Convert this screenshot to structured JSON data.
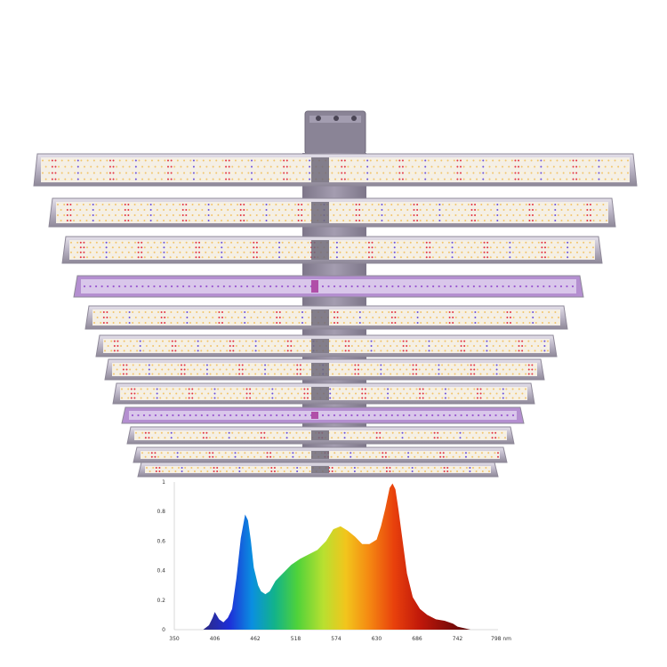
{
  "fixture": {
    "bar_count": 12,
    "bar_types": [
      "full",
      "full",
      "full",
      "uv",
      "full",
      "full",
      "full",
      "full",
      "uv",
      "full",
      "full",
      "full"
    ],
    "colors": {
      "frame": "#c7c3d2",
      "frame_edge": "#8e8898",
      "board": "#f4efe6",
      "warm_led": "#f2c46a",
      "white_led": "#fff4cf",
      "red_led": "#e3343f",
      "blue_led": "#6b4fd8",
      "uv_board": "#d9c7ea",
      "uv_led": "#9b59d0",
      "spine": "#9a93a6",
      "driver": "#8a8496"
    }
  },
  "chart_data": {
    "type": "area",
    "title": "",
    "xlabel": "",
    "ylabel": "",
    "x_unit": "nm",
    "xlim": [
      350,
      798
    ],
    "ylim": [
      0,
      1
    ],
    "x_ticks": [
      350,
      406,
      462,
      518,
      574,
      630,
      686,
      742,
      798
    ],
    "y_ticks": [
      0,
      0.2,
      0.4,
      0.6,
      0.8,
      1
    ],
    "y_tick_labels": [
      "0",
      "0.2",
      "0.4",
      "0.6",
      "0.8",
      "1"
    ],
    "x_tick_labels": [
      "350",
      "406",
      "462",
      "518",
      "574",
      "630",
      "686",
      "742",
      "798 nm"
    ],
    "grid": false,
    "legend": "none",
    "series": [
      {
        "x": [
          350,
          390,
          398,
          403,
          406,
          412,
          418,
          424,
          430,
          436,
          442,
          448,
          452,
          456,
          460,
          466,
          470,
          476,
          482,
          490,
          500,
          512,
          524,
          536,
          548,
          560,
          570,
          580,
          590,
          600,
          610,
          620,
          630,
          636,
          642,
          648,
          652,
          656,
          660,
          666,
          672,
          680,
          690,
          700,
          712,
          724,
          736,
          742,
          760,
          798
        ],
        "values": [
          0,
          0,
          0.03,
          0.08,
          0.12,
          0.07,
          0.05,
          0.08,
          0.14,
          0.35,
          0.62,
          0.78,
          0.74,
          0.6,
          0.42,
          0.3,
          0.26,
          0.24,
          0.26,
          0.33,
          0.38,
          0.44,
          0.48,
          0.51,
          0.54,
          0.6,
          0.68,
          0.7,
          0.67,
          0.63,
          0.58,
          0.58,
          0.61,
          0.7,
          0.82,
          0.96,
          0.99,
          0.95,
          0.82,
          0.6,
          0.38,
          0.22,
          0.14,
          0.1,
          0.07,
          0.06,
          0.04,
          0.02,
          0,
          0
        ]
      }
    ]
  }
}
